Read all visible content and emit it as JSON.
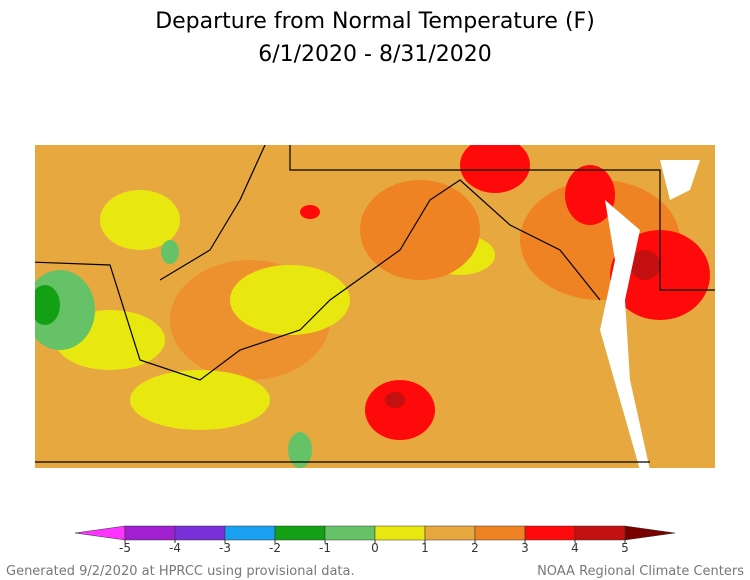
{
  "title": {
    "line1": "Departure from Normal Temperature (F)",
    "line2": "6/1/2020 - 8/31/2020"
  },
  "colorbar": {
    "ticks": [
      -5,
      -4,
      -3,
      -2,
      -1,
      0,
      1,
      2,
      3,
      4,
      5
    ],
    "colors": [
      "#ff33ff",
      "#a020d0",
      "#7a30d8",
      "#1aa0f0",
      "#14a014",
      "#66c266",
      "#e8e810",
      "#e8a840",
      "#ef8222",
      "#ff0a0a",
      "#c41010",
      "#7a0000"
    ]
  },
  "footer": {
    "left": "Generated 9/2/2020 at HPRCC using provisional data.",
    "right": "NOAA Regional Climate Centers"
  }
}
